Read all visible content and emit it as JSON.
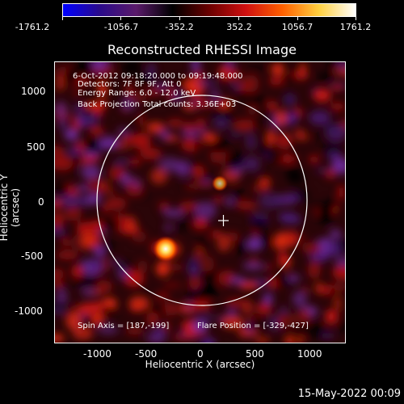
{
  "colorbar": {
    "ticks": [
      "-1761.2",
      "-1056.7",
      "-352.2",
      "352.2",
      "1056.7",
      "1761.2"
    ],
    "colors": [
      "#0000ff",
      "#2a0a8a",
      "#5a1a6a",
      "#000000",
      "#6a0000",
      "#d01010",
      "#ff6000",
      "#ffd040",
      "#ffffff"
    ]
  },
  "title": "Reconstructed RHESSI Image",
  "info": {
    "line1": "6-Oct-2012 09:18:20.000 to 09:19:48.000",
    "line2": "Detectors: 7F 8F 9F, Att 0",
    "line3": "Energy Range: 6.0 - 12.0 keV",
    "line4": "Back Projection    Total counts: 3.36E+03",
    "spin_axis": "Spin Axis = [187,-199]",
    "flare_position": "Flare Position = [-329,-427]"
  },
  "axes": {
    "xlabel": "Heliocentric X (arcsec)",
    "ylabel": "Heliocentric Y (arcsec)",
    "xticks": [
      "-1000",
      "-500",
      "0",
      "500",
      "1000"
    ],
    "yticks": [
      "1000",
      "500",
      "0",
      "-500",
      "-1000"
    ],
    "xrange": [
      -1290,
      1300
    ],
    "yrange": [
      -1270,
      1230
    ]
  },
  "footer": "15-May-2022 00:09",
  "colors": {
    "limb": "#ffffff",
    "hot": "#ffe060",
    "red": "#d01515",
    "purple": "#5a2a8a"
  }
}
